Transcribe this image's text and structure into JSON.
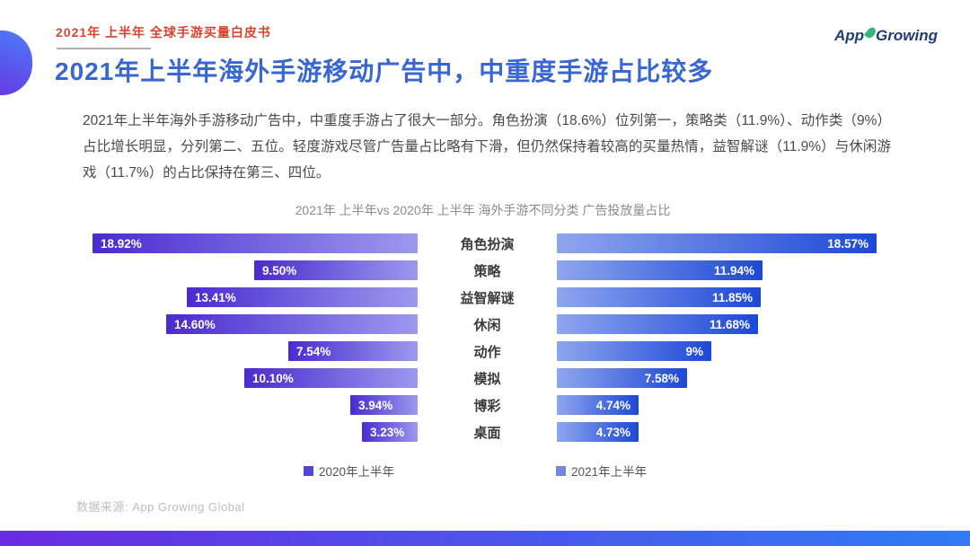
{
  "header": {
    "eyebrow": "2021年 上半年 全球手游买量白皮书",
    "title": "2021年上半年海外手游移动广告中，中重度手游占比较多",
    "logo_app": "App",
    "logo_growing": "Growing"
  },
  "body": {
    "paragraph": "2021年上半年海外手游移动广告中，中重度手游占了很大一部分。角色扮演（18.6%）位列第一，策略类（11.9%）、动作类（9%）占比增长明显，分列第二、五位。轻度游戏尽管广告量占比略有下滑，但仍然保持着较高的买量热情，益智解谜（11.9%）与休闲游戏（11.7%）的占比保持在第三、四位。"
  },
  "chart_data": {
    "type": "bar",
    "orientation": "horizontal-tornado",
    "title": "2021年 上半年vs 2020年 上半年 海外手游不同分类 广告投放量占比",
    "categories": [
      "角色扮演",
      "策略",
      "益智解谜",
      "休闲",
      "动作",
      "模拟",
      "博彩",
      "桌面"
    ],
    "series": [
      {
        "name": "2020年上半年",
        "values": [
          18.92,
          9.5,
          13.41,
          14.6,
          7.54,
          10.1,
          3.94,
          3.23
        ],
        "labels": [
          "18.92%",
          "9.50%",
          "13.41%",
          "14.60%",
          "7.54%",
          "10.10%",
          "3.94%",
          "3.23%"
        ],
        "side": "left",
        "gradient_outer": "#4a2bd0",
        "gradient_inner": "#9c99ee",
        "legend_swatch": "#5244d4"
      },
      {
        "name": "2021年上半年",
        "values": [
          18.57,
          11.94,
          11.85,
          11.68,
          9,
          7.58,
          4.74,
          4.73
        ],
        "labels": [
          "18.57%",
          "11.94%",
          "11.85%",
          "11.68%",
          "9%",
          "7.58%",
          "4.74%",
          "4.73%"
        ],
        "side": "right",
        "gradient_outer": "#1c48d6",
        "gradient_inner": "#8fa6ee",
        "legend_swatch": "#7287e2"
      }
    ],
    "xlim": [
      0,
      19.2
    ],
    "value_labels_inside_bars": true,
    "legend_position": "bottom",
    "grid": false
  },
  "footer": {
    "source": "数据来源: App Growing Global"
  },
  "colors": {
    "eyebrow_red": "#d8432f",
    "title_blue": "#3866d2",
    "logo_navy": "#223c74",
    "logo_green": "#35b57a",
    "blob_gradient": [
      "#4a7df8",
      "#6c2fe0"
    ],
    "bottom_bar_gradient": [
      "#6b2be0",
      "#2f7cf6"
    ]
  }
}
